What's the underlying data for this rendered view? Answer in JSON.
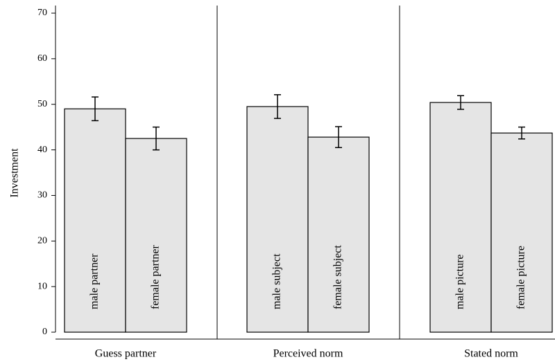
{
  "chart_data": {
    "type": "bar",
    "y_label": "Investment",
    "ylim": [
      0,
      70
    ],
    "yticks": [
      0,
      10,
      20,
      30,
      40,
      50,
      60,
      70
    ],
    "color": "#e5e5e5",
    "groups": [
      {
        "name": "Guess partner",
        "bars": [
          {
            "label": "male partner",
            "value": 49.0,
            "error": 2.6
          },
          {
            "label": "female partner",
            "value": 42.5,
            "error": 2.5
          }
        ]
      },
      {
        "name": "Perceived norm",
        "bars": [
          {
            "label": "male subject",
            "value": 49.5,
            "error": 2.6
          },
          {
            "label": "female subject",
            "value": 42.8,
            "error": 2.3
          }
        ]
      },
      {
        "name": "Stated norm",
        "bars": [
          {
            "label": "male picture",
            "value": 50.4,
            "error": 1.5
          },
          {
            "label": "female picture",
            "value": 43.7,
            "error": 1.3
          }
        ]
      }
    ]
  }
}
